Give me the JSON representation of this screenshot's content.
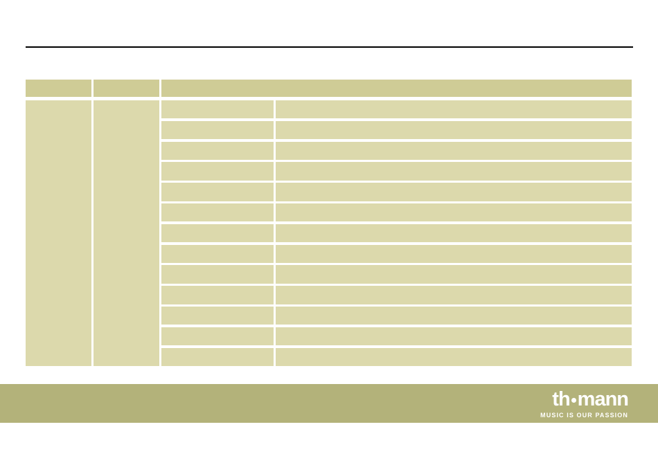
{
  "colors": {
    "page-bg": "#ffffff",
    "rule": "#000000",
    "table-header": "#cfcc96",
    "table-body": "#dcd9ac",
    "footer-band": "#b3b27a",
    "logo-text": "#ffffff"
  },
  "table": {
    "header_cells": [
      "",
      "",
      ""
    ],
    "left_merged_cells": [
      "",
      ""
    ],
    "row_count": 13,
    "spec_rows": [
      {
        "label": "",
        "value": ""
      },
      {
        "label": "",
        "value": ""
      },
      {
        "label": "",
        "value": ""
      },
      {
        "label": "",
        "value": ""
      },
      {
        "label": "",
        "value": ""
      },
      {
        "label": "",
        "value": ""
      },
      {
        "label": "",
        "value": ""
      },
      {
        "label": "",
        "value": ""
      },
      {
        "label": "",
        "value": ""
      },
      {
        "label": "",
        "value": ""
      },
      {
        "label": "",
        "value": ""
      },
      {
        "label": "",
        "value": ""
      },
      {
        "label": "",
        "value": ""
      }
    ]
  },
  "footer": {
    "logo": {
      "part1": "th",
      "part2": "mann",
      "tagline": "MUSIC IS OUR PASSION"
    }
  }
}
